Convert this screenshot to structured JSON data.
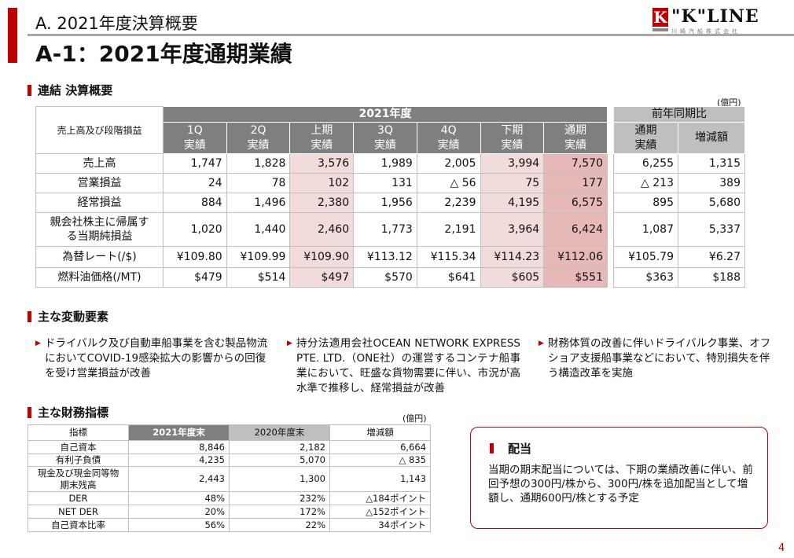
{
  "header": {
    "section": "A. 2021年度決算概要",
    "title": "A-1：2021年度通期業績"
  },
  "logo": {
    "mark": "K",
    "name": "\"K\"LINE",
    "sub": "川崎汽船株式会社"
  },
  "summary": {
    "heading": "連結 決算概要",
    "unit": "(億円)",
    "row_header": "売上高及び段階損益",
    "fy_header": "2021年度",
    "prev_header": "前年同期比",
    "columns": [
      [
        "1Q",
        "実績"
      ],
      [
        "2Q",
        "実績"
      ],
      [
        "上期",
        "実績"
      ],
      [
        "3Q",
        "実績"
      ],
      [
        "4Q",
        "実績"
      ],
      [
        "下期",
        "実績"
      ],
      [
        "通期",
        "実績"
      ]
    ],
    "prev_columns": [
      [
        "通期",
        "実績"
      ],
      [
        "増減額",
        ""
      ]
    ],
    "rows": [
      {
        "label": "売上高",
        "values": [
          "1,747",
          "1,828",
          "3,576",
          "1,989",
          "2,005",
          "3,994",
          "7,570"
        ],
        "prev": [
          "6,255",
          "1,315"
        ]
      },
      {
        "label": "営業損益",
        "values": [
          "24",
          "78",
          "102",
          "131",
          "△ 56",
          "75",
          "177"
        ],
        "prev": [
          "△ 213",
          "389"
        ]
      },
      {
        "label": "経常損益",
        "values": [
          "884",
          "1,496",
          "2,380",
          "1,956",
          "2,239",
          "4,195",
          "6,575"
        ],
        "prev": [
          "895",
          "5,680"
        ]
      },
      {
        "label": "親会社株主に帰属する当期純損益",
        "values": [
          "1,020",
          "1,440",
          "2,460",
          "1,773",
          "2,191",
          "3,964",
          "6,424"
        ],
        "prev": [
          "1,087",
          "5,337"
        ]
      },
      {
        "label": "為替レート(/$)",
        "values": [
          "¥109.80",
          "¥109.99",
          "¥109.90",
          "¥113.12",
          "¥115.34",
          "¥114.23",
          "¥112.06"
        ],
        "prev": [
          "¥105.79",
          "¥6.27"
        ]
      },
      {
        "label": "燃料油価格(/MT)",
        "values": [
          "$479",
          "$514",
          "$497",
          "$570",
          "$641",
          "$605",
          "$551"
        ],
        "prev": [
          "$363",
          "$188"
        ]
      }
    ]
  },
  "factors": {
    "heading": "主な変動要素",
    "items": [
      "ドライバルク及び自動車船事業を含む製品物流においてCOVID-19感染拡大の影響からの回復を受け営業損益が改善",
      "持分法適用会社OCEAN NETWORK EXPRESS PTE. LTD.（ONE社）の運営するコンテナ船事業において、旺盛な貨物需要に伴い、市況が高水準で推移し、経常損益が改善",
      "財務体質の改善に伴いドライバルク事業、オフショア支援船事業などにおいて、特別損失を伴う構造改革を実施"
    ]
  },
  "indicators": {
    "heading": "主な財務指標",
    "unit": "(億円)",
    "headers": [
      "指標",
      "2021年度末",
      "2020年度末",
      "増減額"
    ],
    "rows": [
      [
        "自己資本",
        "8,846",
        "2,182",
        "6,664"
      ],
      [
        "有利子負債",
        "4,235",
        "5,070",
        "△ 835"
      ],
      [
        "現金及び現金同等物期末残高",
        "2,443",
        "1,300",
        "1,143"
      ],
      [
        "DER",
        "48%",
        "232%",
        "△184ポイント"
      ],
      [
        "NET DER",
        "20%",
        "172%",
        "△152ポイント"
      ],
      [
        "自己資本比率",
        "56%",
        "22%",
        "34ポイント"
      ]
    ]
  },
  "dividend": {
    "title": "配当",
    "body": "当期の期末配当については、下期の業績改善に伴い、前回予想の300円/株から、300円/株を追加配当として増額し、通期600円/株とする予定"
  },
  "page_number": "4"
}
